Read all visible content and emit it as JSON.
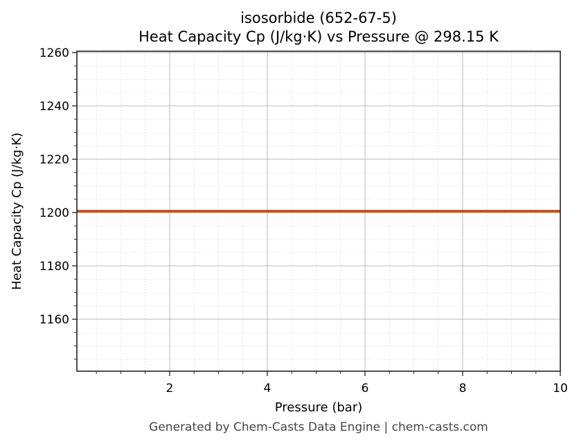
{
  "header": {
    "title_line1": "isosorbide (652-67-5)",
    "title_line2": "Heat Capacity Cp (J/kg·K) vs Pressure @ 298.15 K"
  },
  "footer": {
    "text": "Generated by Chem-Casts Data Engine | chem-casts.com"
  },
  "axes": {
    "xlabel": "Pressure (bar)",
    "ylabel": "Heat Capacity Cp (J/kg·K)",
    "xticks": [
      "2",
      "4",
      "6",
      "8",
      "10"
    ],
    "yticks": [
      "1160",
      "1180",
      "1200",
      "1220",
      "1240",
      "1260"
    ]
  },
  "colors": {
    "line": "#c0522a",
    "grid_major": "#b0b0b0",
    "grid_minor": "#dddddd"
  },
  "chart_data": {
    "type": "line",
    "title": "isosorbide (652-67-5)\nHeat Capacity Cp (J/kg·K) vs Pressure @ 298.15 K",
    "xlabel": "Pressure (bar)",
    "ylabel": "Heat Capacity Cp (J/kg·K)",
    "xlim": [
      0.1,
      10
    ],
    "ylim": [
      1140.5,
      1260.5
    ],
    "grid": true,
    "x_major_ticks": [
      2,
      4,
      6,
      8,
      10
    ],
    "y_major_ticks": [
      1160,
      1180,
      1200,
      1220,
      1240,
      1260
    ],
    "series": [
      {
        "name": "Cp",
        "color": "#c0522a",
        "x": [
          0.1,
          1,
          2,
          3,
          4,
          5,
          6,
          7,
          8,
          9,
          10
        ],
        "y": [
          1200.5,
          1200.5,
          1200.5,
          1200.5,
          1200.5,
          1200.5,
          1200.5,
          1200.5,
          1200.5,
          1200.5,
          1200.5
        ]
      }
    ]
  }
}
